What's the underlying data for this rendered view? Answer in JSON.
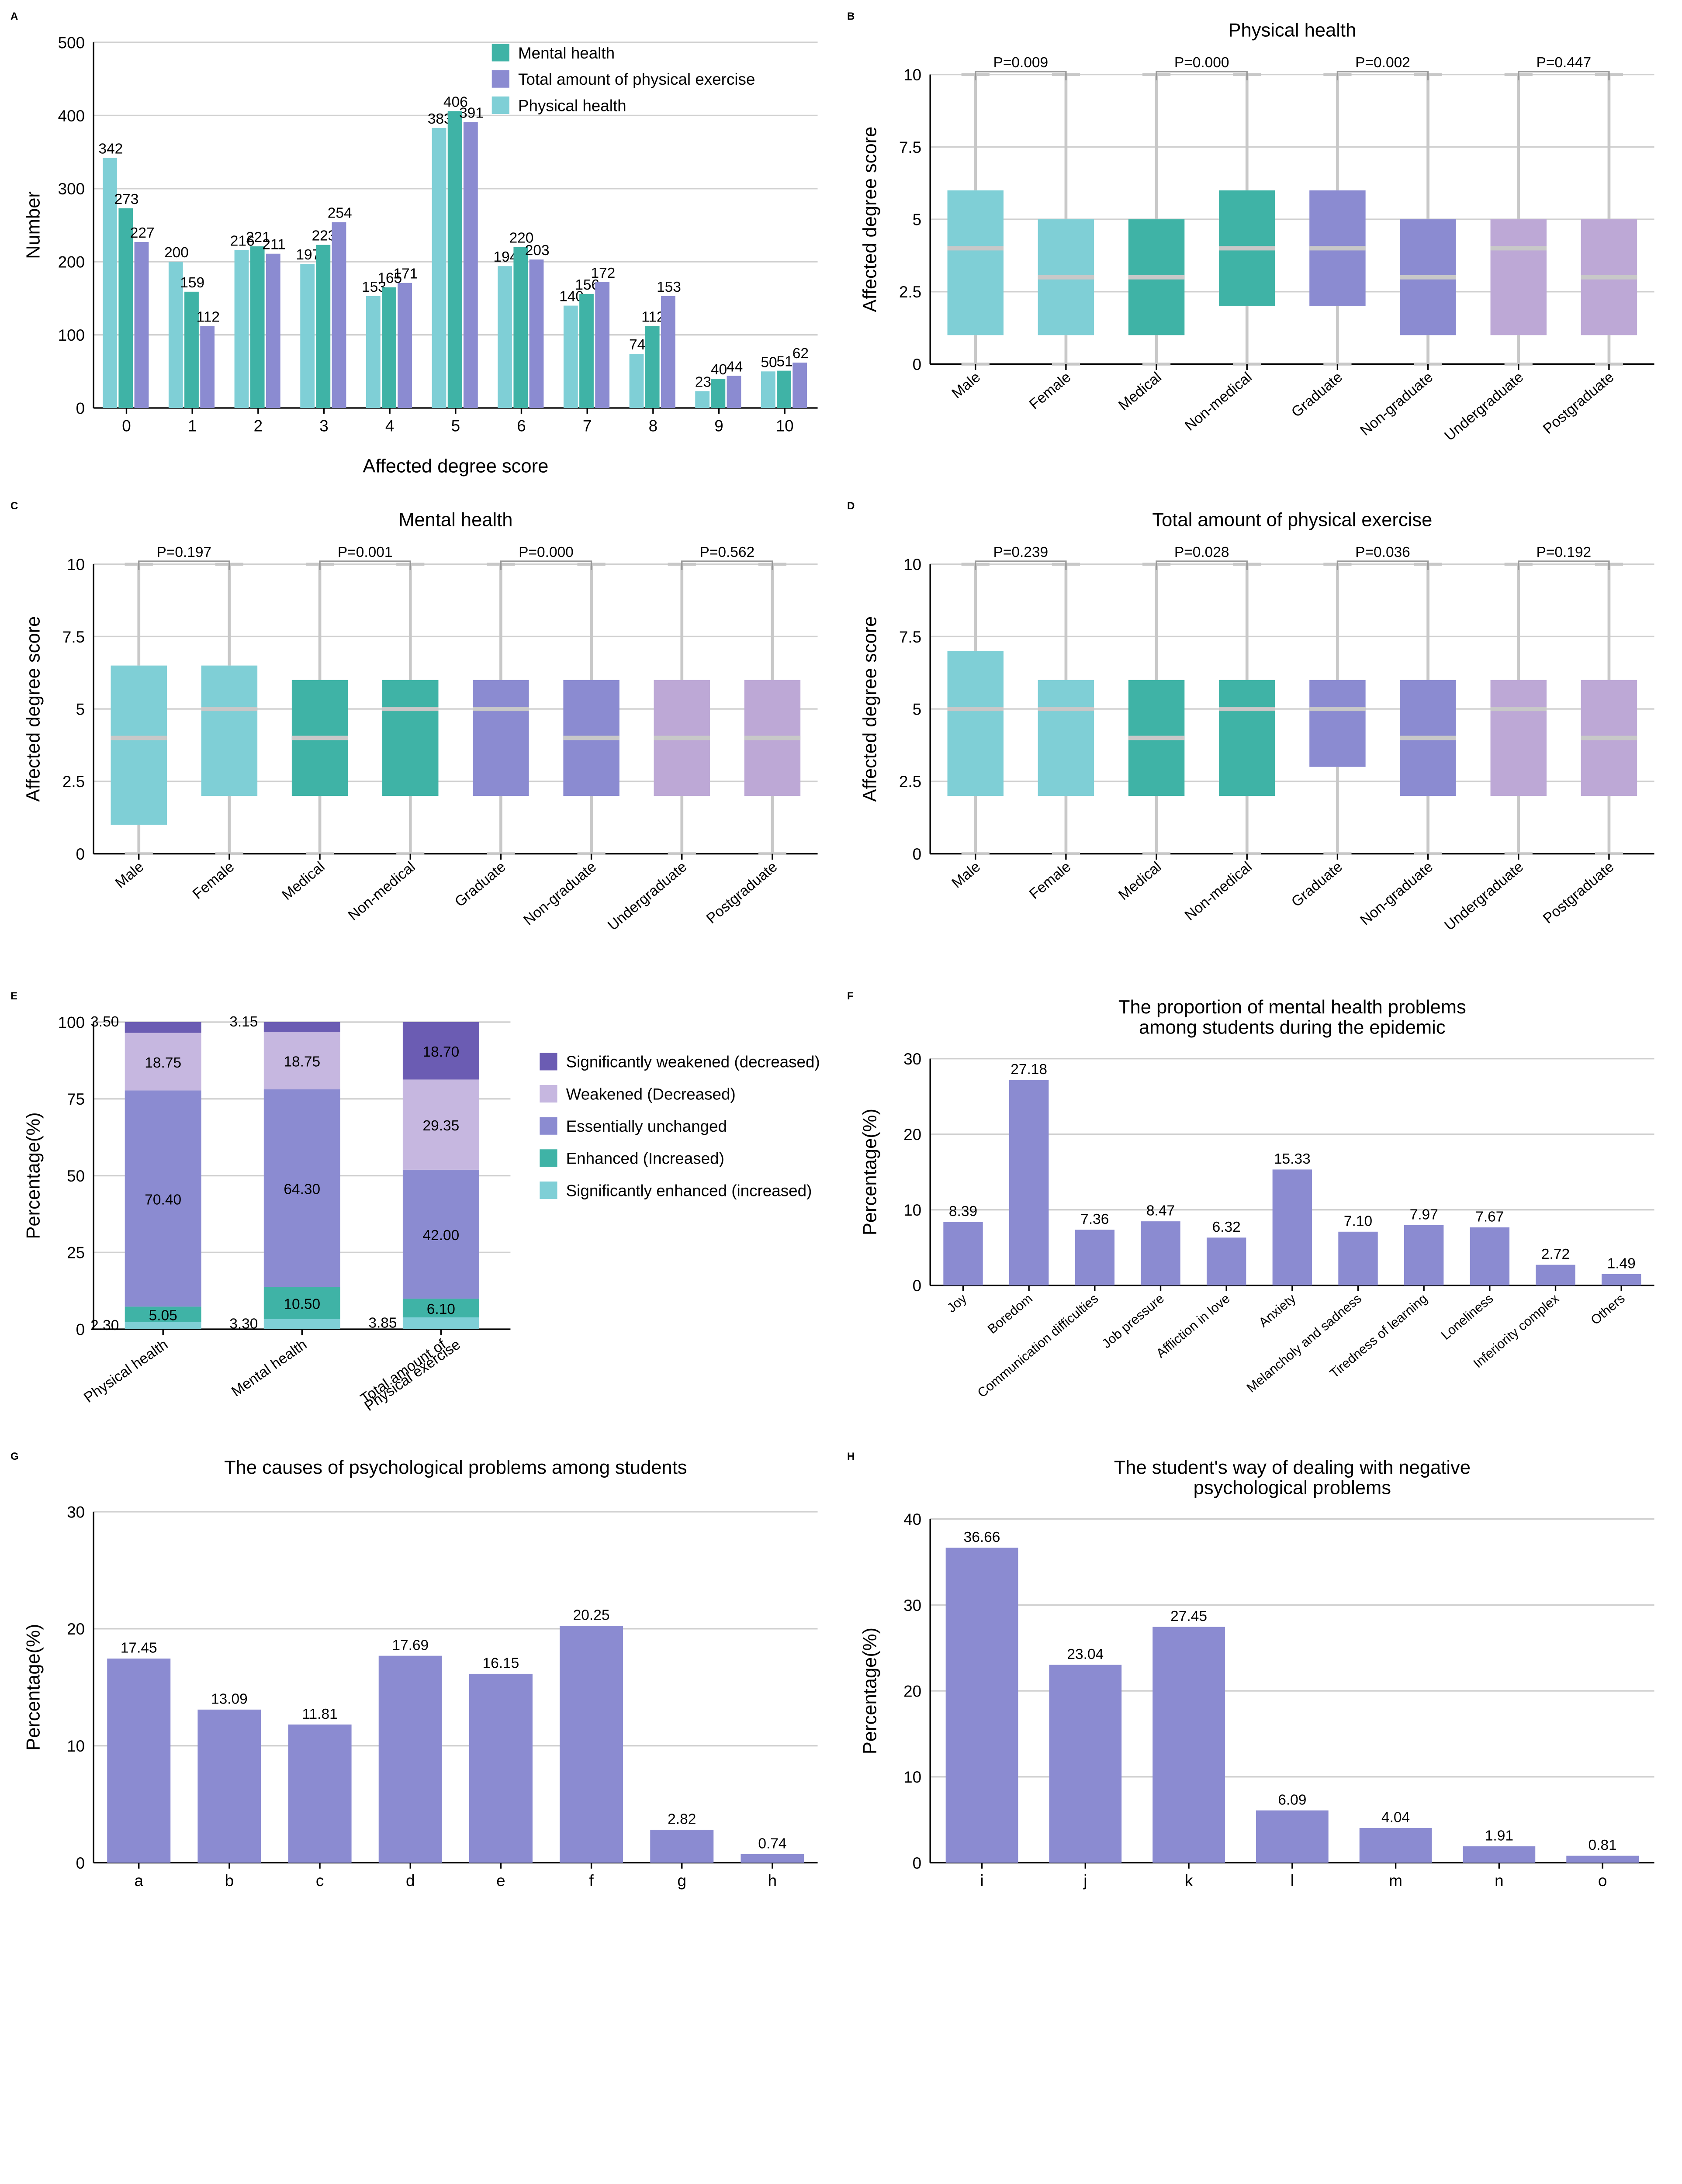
{
  "colors": {
    "teal": "#3fb3a6",
    "purple": "#8b8bd1",
    "lightblue": "#7fcfd6",
    "lightpurple": "#bda8d6",
    "dark_purple": "#6b5cb3",
    "pale_purple": "#c6b7e0",
    "grid": "#d0d0d0",
    "boxline": "#c8c8c8"
  },
  "panelA": {
    "letter": "A",
    "xlabel": "Affected degree score",
    "ylabel": "Number",
    "ylim": [
      0,
      500
    ],
    "ytick_step": 100,
    "categories": [
      "0",
      "1",
      "2",
      "3",
      "4",
      "5",
      "6",
      "7",
      "8",
      "9",
      "10"
    ],
    "legend": [
      "Mental health",
      "Total amount of physical exercise",
      "Physical health"
    ],
    "legend_colors": [
      "#3fb3a6",
      "#8b8bd1",
      "#7fcfd6"
    ],
    "series": [
      {
        "name": "Physical health",
        "color": "#7fcfd6",
        "values": [
          342,
          200,
          216,
          197,
          153,
          383,
          194,
          140,
          74,
          23,
          50
        ]
      },
      {
        "name": "Mental health",
        "color": "#3fb3a6",
        "values": [
          273,
          159,
          221,
          223,
          165,
          406,
          220,
          156,
          112,
          40,
          51
        ]
      },
      {
        "name": "Total amount of physical exercise",
        "color": "#8b8bd1",
        "values": [
          227,
          112,
          211,
          254,
          171,
          391,
          203,
          172,
          153,
          44,
          62
        ]
      }
    ]
  },
  "panelB": {
    "letter": "B",
    "title": "Physical health",
    "ylabel": "Affected degree score",
    "ylim": [
      0,
      10
    ],
    "ytick_step": 2.5,
    "cats": [
      "Male",
      "Female",
      "Medical",
      "Non-medical",
      "Graduate",
      "Non-graduate",
      "Undergraduate",
      "Postgraduate"
    ],
    "colors": [
      "#7fcfd6",
      "#7fcfd6",
      "#3fb3a6",
      "#3fb3a6",
      "#8b8bd1",
      "#8b8bd1",
      "#bda8d6",
      "#bda8d6"
    ],
    "boxes": [
      {
        "min": 0,
        "q1": 1,
        "med": 4,
        "q3": 6,
        "max": 10
      },
      {
        "min": 0,
        "q1": 1,
        "med": 3,
        "q3": 5,
        "max": 10
      },
      {
        "min": 0,
        "q1": 1,
        "med": 3,
        "q3": 5,
        "max": 10
      },
      {
        "min": 0,
        "q1": 2,
        "med": 4,
        "q3": 6,
        "max": 10
      },
      {
        "min": 0,
        "q1": 2,
        "med": 4,
        "q3": 6,
        "max": 10
      },
      {
        "min": 0,
        "q1": 1,
        "med": 3,
        "q3": 5,
        "max": 10
      },
      {
        "min": 0,
        "q1": 1,
        "med": 4,
        "q3": 5,
        "max": 10
      },
      {
        "min": 0,
        "q1": 1,
        "med": 3,
        "q3": 5,
        "max": 10
      }
    ],
    "pvals": [
      "P=0.009",
      "P=0.000",
      "P=0.002",
      "P=0.447"
    ]
  },
  "panelC": {
    "letter": "C",
    "title": "Mental health",
    "ylabel": "Affected degree score",
    "ylim": [
      0,
      10
    ],
    "ytick_step": 2.5,
    "cats": [
      "Male",
      "Female",
      "Medical",
      "Non-medical",
      "Graduate",
      "Non-graduate",
      "Undergraduate",
      "Postgraduate"
    ],
    "colors": [
      "#7fcfd6",
      "#7fcfd6",
      "#3fb3a6",
      "#3fb3a6",
      "#8b8bd1",
      "#8b8bd1",
      "#bda8d6",
      "#bda8d6"
    ],
    "boxes": [
      {
        "min": 0,
        "q1": 1,
        "med": 4,
        "q3": 6.5,
        "max": 10
      },
      {
        "min": 0,
        "q1": 2,
        "med": 5,
        "q3": 6.5,
        "max": 10
      },
      {
        "min": 0,
        "q1": 2,
        "med": 4,
        "q3": 6,
        "max": 10
      },
      {
        "min": 0,
        "q1": 2,
        "med": 5,
        "q3": 6,
        "max": 10
      },
      {
        "min": 0,
        "q1": 2,
        "med": 5,
        "q3": 6,
        "max": 10
      },
      {
        "min": 0,
        "q1": 2,
        "med": 4,
        "q3": 6,
        "max": 10
      },
      {
        "min": 0,
        "q1": 2,
        "med": 4,
        "q3": 6,
        "max": 10
      },
      {
        "min": 0,
        "q1": 2,
        "med": 4,
        "q3": 6,
        "max": 10
      }
    ],
    "pvals": [
      "P=0.197",
      "P=0.001",
      "P=0.000",
      "P=0.562"
    ]
  },
  "panelD": {
    "letter": "D",
    "title": "Total amount of physical exercise",
    "ylabel": "Affected degree score",
    "ylim": [
      0,
      10
    ],
    "ytick_step": 2.5,
    "cats": [
      "Male",
      "Female",
      "Medical",
      "Non-medical",
      "Graduate",
      "Non-graduate",
      "Undergraduate",
      "Postgraduate"
    ],
    "colors": [
      "#7fcfd6",
      "#7fcfd6",
      "#3fb3a6",
      "#3fb3a6",
      "#8b8bd1",
      "#8b8bd1",
      "#bda8d6",
      "#bda8d6"
    ],
    "boxes": [
      {
        "min": 0,
        "q1": 2,
        "med": 5,
        "q3": 7,
        "max": 10
      },
      {
        "min": 0,
        "q1": 2,
        "med": 5,
        "q3": 6,
        "max": 10
      },
      {
        "min": 0,
        "q1": 2,
        "med": 4,
        "q3": 6,
        "max": 10
      },
      {
        "min": 0,
        "q1": 2,
        "med": 5,
        "q3": 6,
        "max": 10
      },
      {
        "min": 0,
        "q1": 3,
        "med": 5,
        "q3": 6,
        "max": 10
      },
      {
        "min": 0,
        "q1": 2,
        "med": 4,
        "q3": 6,
        "max": 10
      },
      {
        "min": 0,
        "q1": 2,
        "med": 5,
        "q3": 6,
        "max": 10
      },
      {
        "min": 0,
        "q1": 2,
        "med": 4,
        "q3": 6,
        "max": 10
      }
    ],
    "pvals": [
      "P=0.239",
      "P=0.028",
      "P=0.036",
      "P=0.192"
    ]
  },
  "panelE": {
    "letter": "E",
    "ylabel": "Percentage(%)",
    "ylim": [
      0,
      100
    ],
    "ytick_step": 25,
    "cats": [
      "Physical health",
      "Mental health",
      "Total amount of\nPhysical exercise"
    ],
    "legend": [
      "Significantly weakened (decreased)",
      "Weakened (Decreased)",
      "Essentially unchanged",
      "Enhanced (Increased)",
      "Significantly enhanced (increased)"
    ],
    "legend_colors": [
      "#6b5cb3",
      "#c6b7e0",
      "#8b8bd1",
      "#3fb3a6",
      "#7fcfd6"
    ],
    "stacks": [
      [
        {
          "v": 2.3,
          "c": "#7fcfd6",
          "lbl": "2.30"
        },
        {
          "v": 5.05,
          "c": "#3fb3a6",
          "lbl": "5.05"
        },
        {
          "v": 70.4,
          "c": "#8b8bd1",
          "lbl": "70.40"
        },
        {
          "v": 18.75,
          "c": "#c6b7e0",
          "lbl": "18.75"
        },
        {
          "v": 3.5,
          "c": "#6b5cb3",
          "lbl": "3.50"
        }
      ],
      [
        {
          "v": 3.3,
          "c": "#7fcfd6",
          "lbl": "3.30"
        },
        {
          "v": 10.5,
          "c": "#3fb3a6",
          "lbl": "10.50"
        },
        {
          "v": 64.3,
          "c": "#8b8bd1",
          "lbl": "64.30"
        },
        {
          "v": 18.75,
          "c": "#c6b7e0",
          "lbl": "18.75"
        },
        {
          "v": 3.15,
          "c": "#6b5cb3",
          "lbl": "3.15"
        }
      ],
      [
        {
          "v": 3.85,
          "c": "#7fcfd6",
          "lbl": "3.85"
        },
        {
          "v": 6.1,
          "c": "#3fb3a6",
          "lbl": "6.10"
        },
        {
          "v": 42.0,
          "c": "#8b8bd1",
          "lbl": "42.00"
        },
        {
          "v": 29.35,
          "c": "#c6b7e0",
          "lbl": "29.35"
        },
        {
          "v": 18.7,
          "c": "#6b5cb3",
          "lbl": "18.70"
        }
      ]
    ]
  },
  "panelF": {
    "letter": "F",
    "title": "The proportion of mental health problems\namong students during the epidemic",
    "ylabel": "Percentage(%)",
    "ylim": [
      0,
      30
    ],
    "ytick_step": 10,
    "bar_color": "#8b8bd1",
    "cats": [
      "Joy",
      "Boredom",
      "Communication difficulties",
      "Job pressure",
      "Affliction in love",
      "Anxiety",
      "Melancholy and sadness",
      "Tiredness of learning",
      "Loneliness",
      "Inferiority complex",
      "Others"
    ],
    "values": [
      8.39,
      27.18,
      7.36,
      8.47,
      6.32,
      15.33,
      7.1,
      7.97,
      7.67,
      2.72,
      1.49
    ]
  },
  "panelG": {
    "letter": "G",
    "title": "The causes of psychological problems among students",
    "ylabel": "Percentage(%)",
    "ylim": [
      0,
      30
    ],
    "ytick_step": 10,
    "bar_color": "#8b8bd1",
    "cats": [
      "a",
      "b",
      "c",
      "d",
      "e",
      "f",
      "g",
      "h"
    ],
    "values": [
      17.45,
      13.09,
      11.81,
      17.69,
      16.15,
      20.25,
      2.82,
      0.74
    ]
  },
  "panelH": {
    "letter": "H",
    "title": "The student's way of dealing with negative\npsychological problems",
    "ylabel": "Percentage(%)",
    "ylim": [
      0,
      40
    ],
    "ytick_step": 10,
    "bar_color": "#8b8bd1",
    "cats": [
      "i",
      "j",
      "k",
      "l",
      "m",
      "n",
      "o"
    ],
    "values": [
      36.66,
      23.04,
      27.45,
      6.09,
      4.04,
      1.91,
      0.81
    ]
  }
}
